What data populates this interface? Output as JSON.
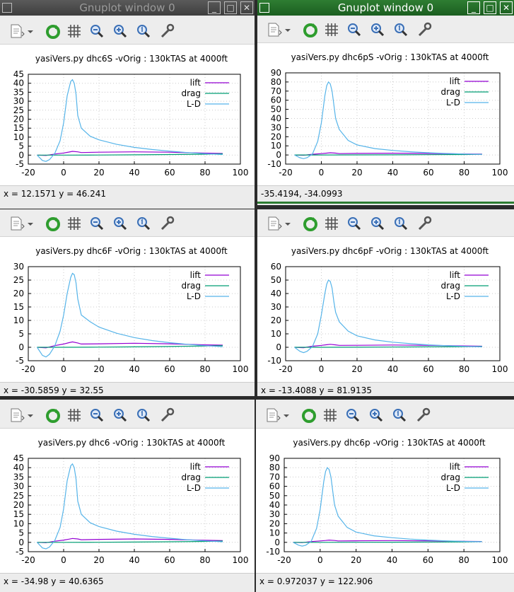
{
  "windows": [
    {
      "title": "Gnuplot window 0",
      "active": false,
      "plot_title": "yasiVers.py dhc6S -vOrig : 130kTAS at 4000ft",
      "status": "x = 12.1571 y = 46.241",
      "chart_data": {
        "type": "line",
        "xlim": [
          -20,
          100
        ],
        "ylim": [
          -5,
          45
        ],
        "xticks": [
          -20,
          0,
          20,
          40,
          60,
          80,
          100
        ],
        "yticks": [
          -5,
          0,
          5,
          10,
          15,
          20,
          25,
          30,
          35,
          40,
          45
        ],
        "series": [
          {
            "name": "lift",
            "color": "#9400d3",
            "x": [
              -15,
              -10,
              -5,
              0,
              3,
              5,
              8,
              10,
              20,
              40,
              60,
              80,
              90
            ],
            "y": [
              0,
              -0.2,
              0.6,
              1.2,
              1.7,
              2.1,
              1.8,
              1.4,
              1.6,
              1.8,
              1.6,
              1.1,
              0.9
            ]
          },
          {
            "name": "drag",
            "color": "#009e73",
            "x": [
              -15,
              0,
              20,
              40,
              60,
              80,
              90
            ],
            "y": [
              0,
              0,
              0.05,
              0.15,
              0.3,
              0.5,
              0.7
            ]
          },
          {
            "name": "L-D",
            "color": "#56b4e9",
            "x": [
              -15,
              -12,
              -10,
              -8,
              -5,
              -2,
              0,
              2,
              4,
              5,
              6,
              7,
              8,
              10,
              15,
              20,
              30,
              40,
              50,
              60,
              70,
              80,
              90
            ],
            "y": [
              0,
              -3,
              -3.5,
              -2.5,
              1,
              8,
              18,
              33,
              41,
              42,
              40,
              34,
              22,
              15,
              10.5,
              8.5,
              6,
              4.3,
              3.1,
              2.2,
              1.4,
              0.8,
              0.3
            ]
          }
        ]
      }
    },
    {
      "title": "Gnuplot window 0",
      "active": true,
      "plot_title": "yasiVers.py dhc6pS -vOrig : 130kTAS at 4000ft",
      "status": "-35.4194, -34.0993",
      "chart_data": {
        "type": "line",
        "xlim": [
          -20,
          100
        ],
        "ylim": [
          -10,
          90
        ],
        "xticks": [
          -20,
          0,
          20,
          40,
          60,
          80,
          100
        ],
        "yticks": [
          -10,
          0,
          10,
          20,
          30,
          40,
          50,
          60,
          70,
          80,
          90
        ],
        "series": [
          {
            "name": "lift",
            "color": "#9400d3",
            "x": [
              -15,
              -10,
              -5,
              0,
              3,
              5,
              8,
              10,
              20,
              40,
              60,
              80,
              90
            ],
            "y": [
              0,
              -0.3,
              0.8,
              1.5,
              2,
              2.4,
              2,
              1.5,
              1.7,
              1.9,
              1.6,
              1.1,
              0.9
            ]
          },
          {
            "name": "drag",
            "color": "#009e73",
            "x": [
              -15,
              0,
              20,
              40,
              60,
              80,
              90
            ],
            "y": [
              0,
              0,
              0.05,
              0.15,
              0.3,
              0.5,
              0.7
            ]
          },
          {
            "name": "L-D",
            "color": "#56b4e9",
            "x": [
              -15,
              -12,
              -10,
              -8,
              -5,
              -2,
              0,
              2,
              3,
              4,
              5,
              6,
              7,
              8,
              10,
              15,
              20,
              30,
              40,
              50,
              60,
              70,
              80,
              90
            ],
            "y": [
              0,
              -3,
              -4,
              -3,
              1,
              15,
              35,
              65,
              76,
              80,
              78,
              70,
              55,
              40,
              28,
              16,
              11,
              7,
              5,
              3.5,
              2.4,
              1.6,
              1,
              0.6
            ]
          }
        ]
      }
    },
    {
      "title": "",
      "active": false,
      "plot_title": "yasiVers.py dhc6F -vOrig : 130kTAS at 4000ft",
      "status": "x = -30.5859 y = 32.55",
      "chart_data": {
        "type": "line",
        "xlim": [
          -20,
          100
        ],
        "ylim": [
          -5,
          30
        ],
        "xticks": [
          -20,
          0,
          20,
          40,
          60,
          80,
          100
        ],
        "yticks": [
          -5,
          0,
          5,
          10,
          15,
          20,
          25,
          30
        ],
        "series": [
          {
            "name": "lift",
            "color": "#9400d3",
            "x": [
              -15,
              -10,
              -5,
              0,
              3,
              5,
              8,
              10,
              20,
              40,
              60,
              80,
              90
            ],
            "y": [
              0,
              -0.2,
              0.6,
              1.2,
              1.7,
              2,
              1.6,
              1.2,
              1.3,
              1.5,
              1.3,
              0.9,
              0.8
            ]
          },
          {
            "name": "drag",
            "color": "#009e73",
            "x": [
              -15,
              0,
              20,
              40,
              60,
              80,
              90
            ],
            "y": [
              0,
              0,
              0.05,
              0.15,
              0.3,
              0.5,
              0.6
            ]
          },
          {
            "name": "L-D",
            "color": "#56b4e9",
            "x": [
              -15,
              -12,
              -10,
              -8,
              -5,
              -2,
              0,
              2,
              4,
              5,
              6,
              7,
              8,
              10,
              15,
              20,
              30,
              40,
              50,
              60,
              70,
              80,
              90
            ],
            "y": [
              0,
              -3,
              -3.6,
              -2.6,
              0.5,
              6,
              12,
              20,
              26,
              27.5,
              27,
              24,
              18,
              12,
              9.5,
              7.5,
              5.2,
              3.6,
              2.5,
              1.7,
              1.1,
              0.6,
              0.2
            ]
          }
        ]
      }
    },
    {
      "title": "",
      "active": false,
      "plot_title": "yasiVers.py dhc6pF -vOrig : 130kTAS at 4000ft",
      "status": "x = -13.4088 y = 81.9135",
      "chart_data": {
        "type": "line",
        "xlim": [
          -20,
          100
        ],
        "ylim": [
          -10,
          60
        ],
        "xticks": [
          -20,
          0,
          20,
          40,
          60,
          80,
          100
        ],
        "yticks": [
          -10,
          0,
          10,
          20,
          30,
          40,
          50,
          60
        ],
        "series": [
          {
            "name": "lift",
            "color": "#9400d3",
            "x": [
              -15,
              -10,
              -5,
              0,
              3,
              5,
              8,
              10,
              20,
              40,
              60,
              80,
              90
            ],
            "y": [
              0,
              -0.3,
              0.8,
              1.4,
              1.9,
              2.2,
              1.8,
              1.4,
              1.5,
              1.7,
              1.4,
              1,
              0.8
            ]
          },
          {
            "name": "drag",
            "color": "#009e73",
            "x": [
              -15,
              0,
              20,
              40,
              60,
              80,
              90
            ],
            "y": [
              0,
              0,
              0.05,
              0.15,
              0.3,
              0.5,
              0.6
            ]
          },
          {
            "name": "L-D",
            "color": "#56b4e9",
            "x": [
              -15,
              -12,
              -10,
              -8,
              -5,
              -2,
              0,
              2,
              3,
              4,
              5,
              6,
              7,
              8,
              10,
              15,
              20,
              30,
              40,
              50,
              60,
              70,
              80,
              90
            ],
            "y": [
              0,
              -3,
              -4,
              -3,
              0.5,
              10,
              24,
              40,
              47,
              50,
              49,
              44,
              34,
              26,
              19,
              12,
              8.5,
              5.5,
              3.8,
              2.7,
              1.8,
              1.2,
              0.7,
              0.3
            ]
          }
        ]
      }
    },
    {
      "title": "",
      "active": false,
      "plot_title": "yasiVers.py dhc6 -vOrig : 130kTAS at 4000ft",
      "status": "x = -34.98 y = 40.6365",
      "chart_data": {
        "type": "line",
        "xlim": [
          -20,
          100
        ],
        "ylim": [
          -5,
          45
        ],
        "xticks": [
          -20,
          0,
          20,
          40,
          60,
          80,
          100
        ],
        "yticks": [
          -5,
          0,
          5,
          10,
          15,
          20,
          25,
          30,
          35,
          40,
          45
        ],
        "series": [
          {
            "name": "lift",
            "color": "#9400d3",
            "x": [
              -15,
              -10,
              -5,
              0,
              3,
              5,
              8,
              10,
              20,
              40,
              60,
              80,
              90
            ],
            "y": [
              0,
              -0.2,
              0.6,
              1.2,
              1.7,
              2.1,
              1.8,
              1.4,
              1.6,
              1.8,
              1.6,
              1.1,
              0.9
            ]
          },
          {
            "name": "drag",
            "color": "#009e73",
            "x": [
              -15,
              0,
              20,
              40,
              60,
              80,
              90
            ],
            "y": [
              0,
              0,
              0.05,
              0.15,
              0.3,
              0.5,
              0.7
            ]
          },
          {
            "name": "L-D",
            "color": "#56b4e9",
            "x": [
              -15,
              -12,
              -10,
              -8,
              -5,
              -2,
              0,
              2,
              4,
              5,
              6,
              7,
              8,
              10,
              15,
              20,
              30,
              40,
              50,
              60,
              70,
              80,
              90
            ],
            "y": [
              0,
              -3,
              -3.5,
              -2.5,
              1,
              8,
              18,
              33,
              41,
              42,
              40,
              34,
              22,
              15,
              10.5,
              8.5,
              6,
              4.3,
              3.1,
              2.2,
              1.4,
              0.8,
              0.3
            ]
          }
        ]
      }
    },
    {
      "title": "",
      "active": false,
      "plot_title": "yasiVers.py dhc6p -vOrig : 130kTAS at 4000ft",
      "status": "x = 0.972037 y = 122.906",
      "chart_data": {
        "type": "line",
        "xlim": [
          -20,
          100
        ],
        "ylim": [
          -10,
          90
        ],
        "xticks": [
          -20,
          0,
          20,
          40,
          60,
          80,
          100
        ],
        "yticks": [
          -10,
          0,
          10,
          20,
          30,
          40,
          50,
          60,
          70,
          80,
          90
        ],
        "series": [
          {
            "name": "lift",
            "color": "#9400d3",
            "x": [
              -15,
              -10,
              -5,
              0,
              3,
              5,
              8,
              10,
              20,
              40,
              60,
              80,
              90
            ],
            "y": [
              0,
              -0.3,
              0.8,
              1.5,
              2,
              2.4,
              2,
              1.5,
              1.7,
              1.9,
              1.6,
              1.1,
              0.9
            ]
          },
          {
            "name": "drag",
            "color": "#009e73",
            "x": [
              -15,
              0,
              20,
              40,
              60,
              80,
              90
            ],
            "y": [
              0,
              0,
              0.05,
              0.15,
              0.3,
              0.5,
              0.7
            ]
          },
          {
            "name": "L-D",
            "color": "#56b4e9",
            "x": [
              -15,
              -12,
              -10,
              -8,
              -5,
              -2,
              0,
              2,
              3,
              4,
              5,
              6,
              7,
              8,
              10,
              15,
              20,
              30,
              40,
              50,
              60,
              70,
              80,
              90
            ],
            "y": [
              0,
              -3,
              -4,
              -3,
              1,
              15,
              35,
              65,
              76,
              80,
              78,
              70,
              55,
              40,
              28,
              16,
              11,
              7,
              5,
              3.5,
              2.4,
              1.6,
              1,
              0.6
            ]
          }
        ]
      }
    }
  ],
  "toolbar": {
    "icons": [
      "export-icon",
      "replot-icon",
      "grid-icon",
      "zoom-out-icon",
      "zoom-in-icon",
      "unzoom-icon",
      "settings-icon"
    ]
  }
}
